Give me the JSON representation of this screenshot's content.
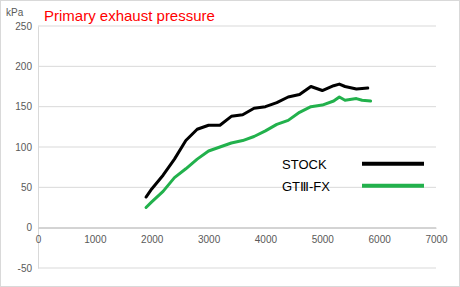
{
  "chart_data": {
    "type": "line",
    "title": "Primary exhaust pressure",
    "ylabel": "kPa",
    "xlim": [
      0,
      7000
    ],
    "xticks": [
      0,
      1000,
      2000,
      3000,
      4000,
      5000,
      6000,
      7000
    ],
    "ylim": [
      -50,
      250
    ],
    "yticks": [
      -50,
      0,
      50,
      100,
      150,
      200,
      250
    ],
    "grid": true,
    "legend": "lower right",
    "series": [
      {
        "name": "STOCK",
        "color": "#000000",
        "line_style": "solid",
        "x": [
          1900,
          2000,
          2200,
          2400,
          2600,
          2800,
          3000,
          3200,
          3400,
          3600,
          3800,
          4000,
          4200,
          4400,
          4600,
          4800,
          5000,
          5200,
          5300,
          5400,
          5600,
          5800
        ],
        "values": [
          38,
          48,
          65,
          85,
          108,
          122,
          127,
          127,
          138,
          140,
          148,
          150,
          155,
          162,
          165,
          175,
          170,
          176,
          178,
          175,
          172,
          173
        ]
      },
      {
        "name": "GTⅢ-FX",
        "color": "#22b14c",
        "line_style": "solid",
        "x": [
          1900,
          2000,
          2200,
          2400,
          2600,
          2800,
          3000,
          3200,
          3400,
          3600,
          3800,
          4000,
          4200,
          4400,
          4600,
          4800,
          5000,
          5200,
          5300,
          5400,
          5600,
          5700,
          5850
        ],
        "values": [
          25,
          32,
          45,
          62,
          73,
          85,
          95,
          100,
          105,
          108,
          113,
          120,
          128,
          133,
          143,
          150,
          152,
          157,
          162,
          158,
          160,
          158,
          157
        ]
      }
    ]
  }
}
